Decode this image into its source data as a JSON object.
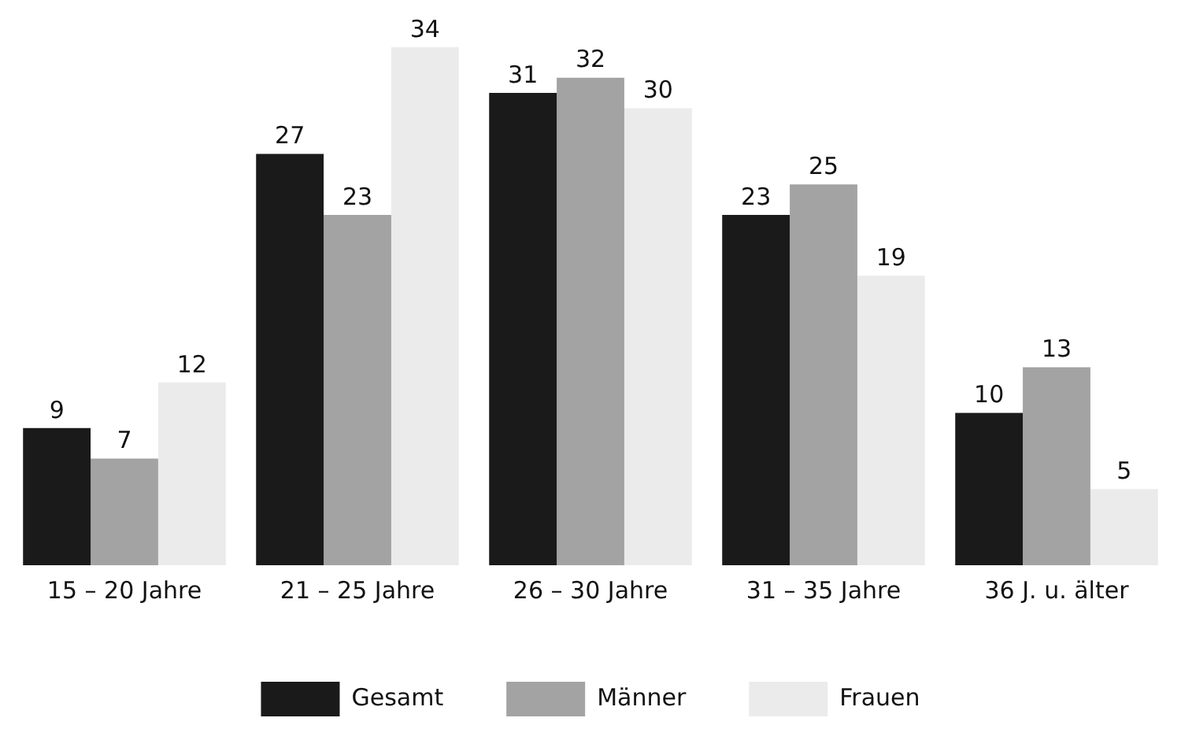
{
  "chart_data": {
    "type": "bar",
    "categories": [
      "15 – 20 Jahre",
      "21 – 25 Jahre",
      "26 – 30 Jahre",
      "31 – 35 Jahre",
      "36 J. u. älter"
    ],
    "series": [
      {
        "name": "Gesamt",
        "color": "#1a1a1a",
        "values": [
          9,
          27,
          31,
          23,
          10
        ]
      },
      {
        "name": "Männer",
        "color": "#a3a3a3",
        "values": [
          7,
          23,
          32,
          25,
          13
        ]
      },
      {
        "name": "Frauen",
        "color": "#ebebeb",
        "values": [
          12,
          34,
          30,
          19,
          5
        ]
      }
    ],
    "data_labels": true,
    "grid": false,
    "legend": "bottom"
  }
}
